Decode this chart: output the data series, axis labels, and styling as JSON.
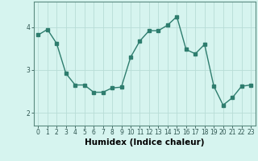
{
  "x": [
    0,
    1,
    2,
    3,
    4,
    5,
    6,
    7,
    8,
    9,
    10,
    11,
    12,
    13,
    14,
    15,
    16,
    17,
    18,
    19,
    20,
    21,
    22,
    23
  ],
  "y": [
    3.82,
    3.95,
    3.62,
    2.92,
    2.65,
    2.65,
    2.48,
    2.48,
    2.58,
    2.6,
    3.3,
    3.68,
    3.92,
    3.92,
    4.05,
    4.25,
    3.48,
    3.38,
    3.6,
    2.62,
    2.18,
    2.35,
    2.62,
    2.65
  ],
  "line_color": "#2e7d6e",
  "marker": "s",
  "markersize": 2.2,
  "linewidth": 1.0,
  "bg_color": "#d6f4ef",
  "grid_color": "#b8ddd6",
  "xlabel": "Humidex (Indice chaleur)",
  "xlabel_fontsize": 7.5,
  "ylabel_ticks": [
    2,
    3,
    4
  ],
  "xlim": [
    -0.5,
    23.5
  ],
  "ylim": [
    1.7,
    4.6
  ],
  "tick_fontsize": 5.5
}
